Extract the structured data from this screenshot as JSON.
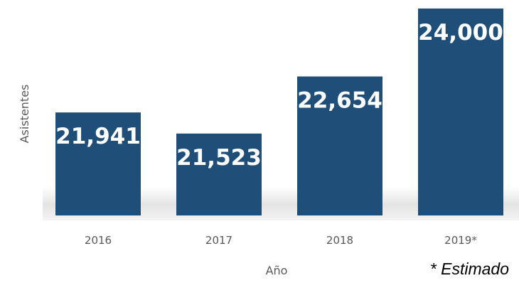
{
  "chart_data": {
    "type": "bar",
    "categories": [
      "2016",
      "2017",
      "2018",
      "2019*"
    ],
    "values": [
      21941,
      21523,
      22654,
      24000
    ],
    "value_labels": [
      "21,941",
      "21,523",
      "22,654",
      "24,000"
    ],
    "xlabel": "Año",
    "ylabel": "Asistentes",
    "note": "* Estimado",
    "ylim": [
      19900,
      24000
    ],
    "grid": false,
    "legend": "none",
    "bar_color": "#1f4e79"
  }
}
